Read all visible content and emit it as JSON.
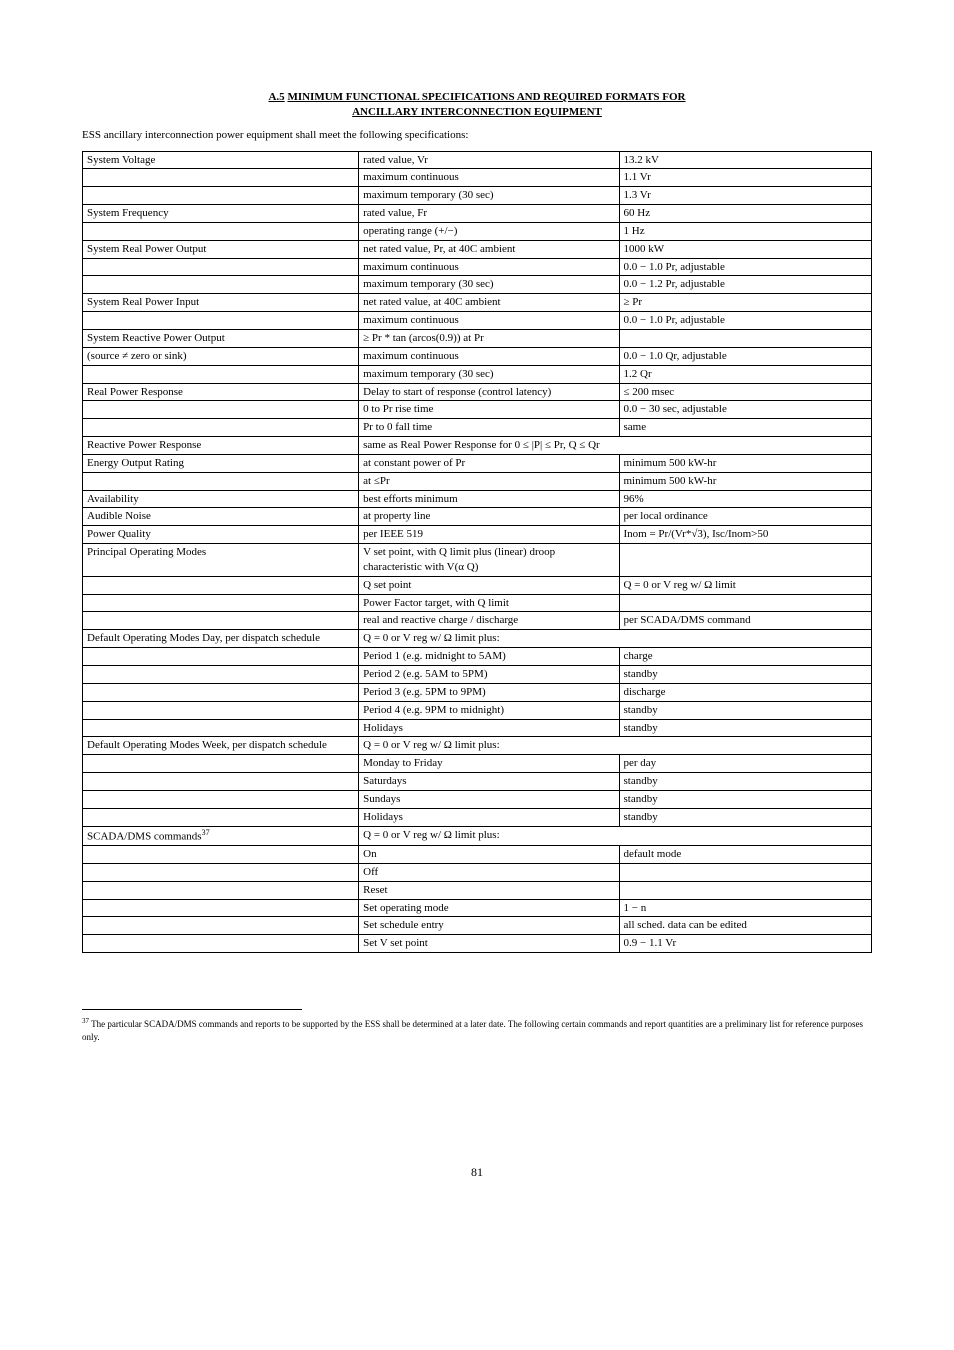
{
  "title_prefix": "A.5",
  "title_underline": "MINIMUM FUNCTIONAL SPECIFICATIONS AND REQUIRED FORMATS FOR",
  "title_line2": "ANCILLARY INTERCONNECTION EQUIPMENT",
  "subtitle": "ESS ancillary interconnection power equipment shall meet the following specifications:",
  "rows": [
    {
      "c1": "System Voltage",
      "c2": "rated value, Vr",
      "c3": "13.2 kV"
    },
    {
      "c1": "",
      "c2": "maximum continuous",
      "c3": "1.1 Vr"
    },
    {
      "c1": "",
      "c2": "maximum temporary (30 sec)",
      "c3": "1.3 Vr"
    },
    {
      "c1": "System Frequency",
      "c2": "rated value, Fr",
      "c3": "60 Hz"
    },
    {
      "c1": "",
      "c2": "operating range (+/−)",
      "c3": "1 Hz"
    },
    {
      "c1": "System Real Power Output",
      "c2": "net rated value, Pr, at 40C ambient",
      "c3": "1000 kW"
    },
    {
      "c1": "",
      "c2": "maximum continuous",
      "c3": "0.0 − 1.0 Pr, adjustable"
    },
    {
      "c1": "",
      "c2": "maximum temporary (30 sec)",
      "c3": "0.0 − 1.2 Pr, adjustable"
    },
    {
      "c1": "System Real Power Input",
      "c2": "net rated value, at 40C ambient",
      "c3": "≥ Pr"
    },
    {
      "c1": "",
      "c2": "maximum continuous",
      "c3": "0.0 − 1.0 Pr, adjustable"
    },
    {
      "c1": "System Reactive Power Output",
      "c2": "≥ Pr * tan (arcos(0.9)) at Pr",
      "c3": ""
    },
    {
      "c1": "(source ≠ zero or sink)",
      "c2": "maximum continuous",
      "c3": "0.0 − 1.0 Qr, adjustable"
    },
    {
      "c1": "",
      "c2": "maximum temporary (30 sec)",
      "c3": "1.2 Qr"
    },
    {
      "c1": "Real Power Response",
      "c2": "Delay to start of response (control latency)",
      "c3": "≤ 200 msec"
    },
    {
      "c1": "",
      "c2": "0 to Pr rise time",
      "c3": "0.0 − 30 sec, adjustable"
    },
    {
      "c1": "",
      "c2": "Pr to 0 fall time",
      "c3": "same"
    },
    {
      "c1": "Reactive Power Response",
      "c12": "same as Real Power Response for 0 ≤ |P| ≤ Pr, Q ≤ Qr"
    },
    {
      "c1": "Energy Output Rating",
      "c2": "at constant power of Pr",
      "c3": "minimum 500 kW-hr"
    },
    {
      "c1": "",
      "c2": "at ≤Pr",
      "c3": "minimum 500 kW-hr"
    },
    {
      "c1": "Availability",
      "c2": "best efforts minimum",
      "c3": "96%"
    },
    {
      "c1": "Audible Noise",
      "c2": "at property line",
      "c3": "per local ordinance"
    },
    {
      "c1": "Power Quality",
      "c2": "per IEEE 519",
      "c3": "Inom = Pr/(Vr*√3), Isc/Inom>50"
    },
    {
      "c1": "Principal Operating Modes",
      "c2": "V set point, with Q limit plus (linear) droop characteristic with V(α Q)",
      "c3": ""
    },
    {
      "c1": "",
      "c2": "Q set point",
      "c3": "Q = 0 or V reg w/ Ω limit"
    },
    {
      "c1": "",
      "c2": "Power Factor target, with Q limit",
      "c3": ""
    },
    {
      "c1": "",
      "c2": "real and reactive charge / discharge",
      "c3": "per SCADA/DMS command"
    },
    {
      "c1": "Default Operating Modes Day, per dispatch schedule",
      "c12": "Q = 0 or V reg w/ Ω limit plus:"
    },
    {
      "c1": "",
      "c2": "Period 1 (e.g. midnight to 5AM)",
      "c3": "charge"
    },
    {
      "c1": "",
      "c2": "Period 2 (e.g. 5AM to 5PM)",
      "c3": "standby"
    },
    {
      "c1": "",
      "c2": "Period 3 (e.g. 5PM to 9PM)",
      "c3": "discharge"
    },
    {
      "c1": "",
      "c2": "Period 4 (e.g. 9PM to midnight)",
      "c3": "standby"
    },
    {
      "c1": "",
      "c2": "Holidays",
      "c3": "standby"
    },
    {
      "c1": "Default Operating Modes Week, per dispatch schedule",
      "c12": "Q = 0 or V reg w/ Ω limit plus:"
    },
    {
      "c1": "",
      "c2": "Monday to Friday",
      "c3": "per day"
    },
    {
      "c1": "",
      "c2": "Saturdays",
      "c3": "standby"
    },
    {
      "c1": "",
      "c2": "Sundays",
      "c3": "standby"
    },
    {
      "c1": "",
      "c2": "Holidays",
      "c3": "standby"
    },
    {
      "c1": "SCADA/DMS commands<sup>37</sup>",
      "c12": "Q = 0 or V reg w/ Ω limit plus:"
    },
    {
      "c1": "",
      "c2": "On",
      "c3": "default mode"
    },
    {
      "c1": "",
      "c2": "Off",
      "c3": ""
    },
    {
      "c1": "",
      "c2": "Reset",
      "c3": ""
    },
    {
      "c1": "",
      "c2": "Set operating mode",
      "c3": "1 − n"
    },
    {
      "c1": "",
      "c2": "Set schedule entry",
      "c3": "all sched. data can be edited"
    },
    {
      "c1": "",
      "c2": "Set V set point",
      "c3": "0.9 − 1.1 Vr"
    }
  ],
  "footnote": {
    "num": "37",
    "text": " The particular SCADA/DMS commands and reports to be supported by the ESS shall be determined at a later date. The following certain commands and report quantities are a preliminary list for reference purposes only."
  },
  "page_number": "81"
}
